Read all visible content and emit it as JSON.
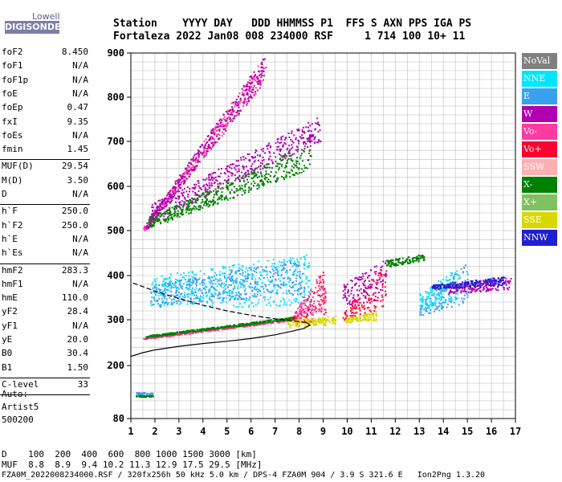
{
  "logo": {
    "top": "Lowell",
    "main": "DIGISONDE"
  },
  "header": {
    "line1": "Station    YYYY DAY   DDD HHMMSS P1  FFS S AXN PPS IGA PS",
    "line2": "Fortaleza 2022 Jan08 008 234000 RSF     1 714 100 10+ 11"
  },
  "params": [
    {
      "name": "foF2",
      "value": "8.450"
    },
    {
      "name": "foF1",
      "value": "N/A"
    },
    {
      "name": "foF1p",
      "value": "N/A"
    },
    {
      "name": "foE",
      "value": "N/A"
    },
    {
      "name": "foEp",
      "value": "0.47"
    },
    {
      "name": "fxI",
      "value": "9.35"
    },
    {
      "name": "foEs",
      "value": "N/A"
    },
    {
      "name": "fmin",
      "value": "1.45"
    },
    {
      "name": "MUF(D)",
      "value": "29.54"
    },
    {
      "name": "M(D)",
      "value": "3.50"
    },
    {
      "name": "D",
      "value": "N/A"
    },
    {
      "name": "h`F",
      "value": "250.0"
    },
    {
      "name": "h`F2",
      "value": "250.0"
    },
    {
      "name": "h`E",
      "value": "N/A"
    },
    {
      "name": "h`Es",
      "value": "N/A"
    },
    {
      "name": "hmF2",
      "value": "283.3"
    },
    {
      "name": "hmF1",
      "value": "N/A"
    },
    {
      "name": "hmE",
      "value": "110.0"
    },
    {
      "name": "yF2",
      "value": "28.4"
    },
    {
      "name": "yF1",
      "value": "N/A"
    },
    {
      "name": "yE",
      "value": "20.0"
    },
    {
      "name": "B0",
      "value": "30.4"
    },
    {
      "name": "B1",
      "value": "1.50"
    },
    {
      "name": "C-level",
      "value": "33"
    }
  ],
  "auto": {
    "line1": "Auto:",
    "line2": "Artist5",
    "line3": "500200"
  },
  "legend": [
    {
      "label": "NoVal",
      "color": "#808080"
    },
    {
      "label": "NNE",
      "color": "#00e5ff"
    },
    {
      "label": "E",
      "color": "#3aa0f0"
    },
    {
      "label": "W",
      "color": "#b000b0"
    },
    {
      "label": "Vo-",
      "color": "#ff3aa0"
    },
    {
      "label": "Vo+",
      "color": "#ff0030"
    },
    {
      "label": "SSW",
      "color": "#ffb0b0"
    },
    {
      "label": "X-",
      "color": "#008000"
    },
    {
      "label": "X+",
      "color": "#80c060"
    },
    {
      "label": "SSE",
      "color": "#d8d800"
    },
    {
      "label": "NNW",
      "color": "#2020d0"
    }
  ],
  "footer": {
    "line1": "D    100  200  400  600  800 1000 1500 3000 [km]",
    "line2": "MUF  8.8  8.9  9.4 10.2 11.3 12.9 17.5 29.5 [MHz]",
    "line3": "FZA0M_2022008234000.RSF / 320fx256h 50 kHz 5.0 km / DPS-4 FZA0M 904 / 3.9 S 321.6 E   Ion2Png 1.3.20"
  },
  "chart_data": {
    "type": "scatter",
    "xlim": [
      1,
      17
    ],
    "ylim": [
      80,
      900
    ],
    "x_ticks": [
      1,
      2,
      3,
      4,
      5,
      6,
      7,
      8,
      9,
      10,
      11,
      12,
      13,
      14,
      15,
      16,
      17
    ],
    "y_ticks": [
      80,
      200,
      300,
      400,
      500,
      600,
      700,
      800,
      900
    ],
    "grid": true,
    "legend_position": "right",
    "clusters": [
      {
        "label": "Vo-",
        "x_range": [
          1.5,
          7.8
        ],
        "y_start": [
          258,
          262
        ],
        "y_end": [
          300,
          305
        ]
      },
      {
        "label": "X-",
        "x_range": [
          1.6,
          7.8
        ],
        "y_start": [
          262,
          266
        ],
        "y_end": [
          303,
          308
        ]
      },
      {
        "label": "NNE",
        "x_range": [
          1.8,
          8.5
        ],
        "y_start": [
          330,
          400
        ],
        "y_end": [
          330,
          450
        ]
      },
      {
        "label": "E",
        "x_range": [
          1.8,
          8.2
        ],
        "y_start": [
          330,
          380
        ],
        "y_end": [
          360,
          440
        ]
      },
      {
        "label": "Vo-",
        "x_range": [
          1.5,
          6.5
        ],
        "y_start": [
          495,
          510
        ],
        "y_end": [
          830,
          890
        ]
      },
      {
        "label": "W",
        "x_range": [
          1.6,
          6.6
        ],
        "y_start": [
          500,
          520
        ],
        "y_end": [
          840,
          900
        ]
      },
      {
        "label": "W",
        "x_range": [
          1.8,
          8.9
        ],
        "y_start": [
          520,
          560
        ],
        "y_end": [
          700,
          760
        ]
      },
      {
        "label": "X-",
        "x_range": [
          1.7,
          8.5
        ],
        "y_start": [
          505,
          530
        ],
        "y_end": [
          640,
          700
        ]
      },
      {
        "label": "Vo+",
        "x_range": [
          7.7,
          9.1
        ],
        "y_start": [
          290,
          310
        ],
        "y_end": [
          300,
          420
        ]
      },
      {
        "label": "Vo-",
        "x_range": [
          7.8,
          9.1
        ],
        "y_start": [
          300,
          320
        ],
        "y_end": [
          320,
          430
        ]
      },
      {
        "label": "SSE",
        "x_range": [
          7.5,
          9.5
        ],
        "y_start": [
          285,
          300
        ],
        "y_end": [
          290,
          310
        ]
      },
      {
        "label": "Vo+",
        "x_range": [
          9.8,
          11.6
        ],
        "y_start": [
          300,
          320
        ],
        "y_end": [
          330,
          430
        ]
      },
      {
        "label": "W",
        "x_range": [
          9.8,
          11.6
        ],
        "y_start": [
          330,
          380
        ],
        "y_end": [
          350,
          440
        ]
      },
      {
        "label": "SSE",
        "x_range": [
          9.9,
          11.2
        ],
        "y_start": [
          295,
          305
        ],
        "y_end": [
          300,
          320
        ]
      },
      {
        "label": "X-",
        "x_range": [
          11.6,
          13.2
        ],
        "y_start": [
          420,
          435
        ],
        "y_end": [
          435,
          450
        ]
      },
      {
        "label": "E",
        "x_range": [
          13.0,
          15.0
        ],
        "y_start": [
          310,
          340
        ],
        "y_end": [
          340,
          430
        ]
      },
      {
        "label": "NNE",
        "x_range": [
          13.0,
          14.6
        ],
        "y_start": [
          320,
          360
        ],
        "y_end": [
          350,
          420
        ]
      },
      {
        "label": "W",
        "x_range": [
          14.2,
          16.8
        ],
        "y_start": [
          360,
          380
        ],
        "y_end": [
          370,
          400
        ]
      },
      {
        "label": "NNW",
        "x_range": [
          13.5,
          16.5
        ],
        "y_start": [
          370,
          380
        ],
        "y_end": [
          380,
          400
        ]
      },
      {
        "label": "X-",
        "x_range": [
          1.2,
          1.9
        ],
        "y_start": [
          130,
          134
        ],
        "y_end": [
          130,
          134
        ]
      },
      {
        "label": "E",
        "x_range": [
          1.2,
          1.9
        ],
        "y_start": [
          136,
          140
        ],
        "y_end": [
          136,
          140
        ]
      }
    ],
    "profile_curve": {
      "x": [
        1.0,
        1.5,
        2.0,
        3.0,
        4.0,
        5.0,
        6.0,
        7.0,
        7.8,
        8.2,
        8.45,
        8.3,
        7.8,
        7.0,
        6.0,
        5.0,
        4.0,
        3.0,
        2.0,
        1.0
      ],
      "y": [
        220,
        228,
        234,
        242,
        248,
        253,
        259,
        267,
        276,
        281,
        288,
        294,
        297,
        302,
        310,
        320,
        333,
        348,
        365,
        385
      ]
    }
  }
}
